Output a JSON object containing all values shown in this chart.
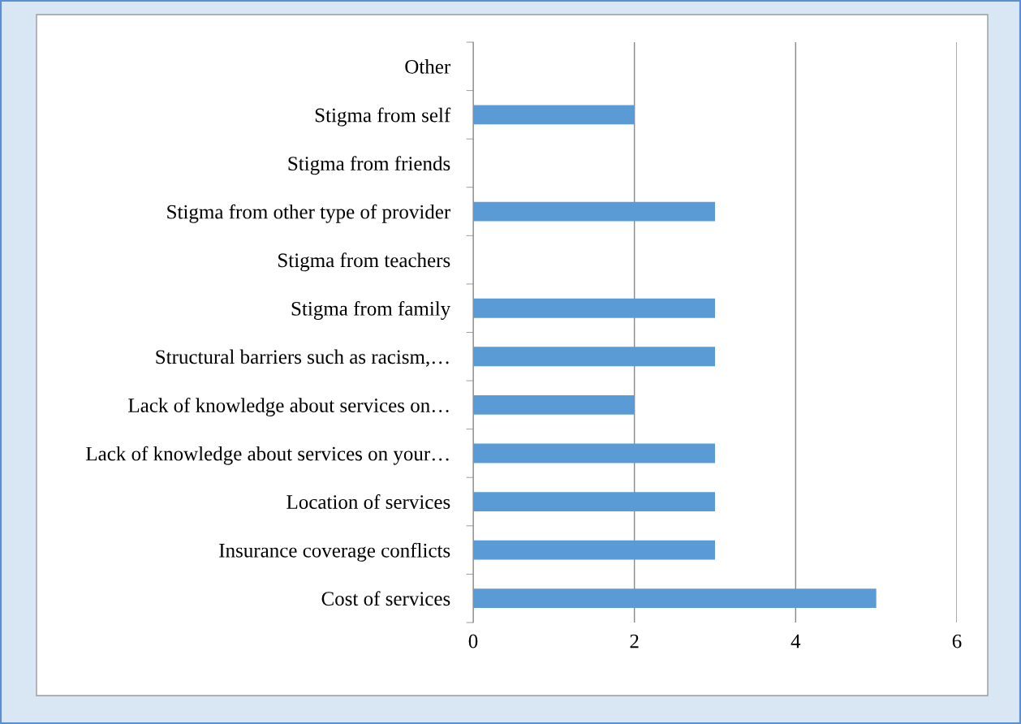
{
  "chart_data": {
    "type": "bar",
    "orientation": "horizontal",
    "categories": [
      "Other",
      "Stigma from self",
      "Stigma from friends",
      "Stigma from other type of provider",
      "Stigma from teachers",
      "Stigma from family",
      "Structural barriers such as racism,…",
      "Lack of knowledge about services on…",
      "Lack of knowledge about services on your…",
      "Location of services",
      "Insurance coverage conflicts",
      "Cost of services"
    ],
    "values": [
      0,
      2,
      0,
      3,
      0,
      3,
      3,
      2,
      3,
      3,
      3,
      5
    ],
    "color": "#5b9bd5",
    "xlim": [
      0,
      6
    ],
    "xticks": [
      0,
      2,
      4,
      6
    ],
    "grid": "x",
    "legend": false
  }
}
